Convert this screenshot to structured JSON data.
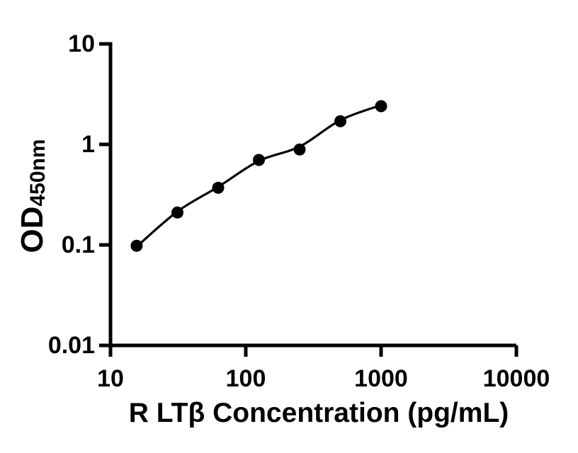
{
  "figure": {
    "background_color": "#ffffff",
    "ink_color": "#000000"
  },
  "chart_data": {
    "type": "scatter",
    "title": "",
    "xlabel": "R LTβ Concentration (pg/mL)",
    "ylabel_main": "OD",
    "ylabel_sub": "450nm",
    "x_scale": "log10",
    "y_scale": "log10",
    "xlim": [
      10,
      10000
    ],
    "ylim": [
      0.01,
      10
    ],
    "x_ticks": [
      10,
      100,
      1000,
      10000
    ],
    "x_tick_labels": [
      "10",
      "100",
      "1000",
      "10000"
    ],
    "y_ticks": [
      10,
      1,
      0.1,
      0.01
    ],
    "y_tick_labels": [
      "10",
      "1",
      "0.1",
      "0.01"
    ],
    "grid": false,
    "legend": false,
    "series": [
      {
        "name": "standard-points",
        "type": "scatter",
        "marker": "filled-circle",
        "color": "#000000",
        "x": [
          15.6,
          31.25,
          62.5,
          125,
          250,
          500,
          1000
        ],
        "y": [
          0.098,
          0.21,
          0.37,
          0.7,
          0.89,
          1.7,
          2.4
        ]
      },
      {
        "name": "fit-curve",
        "type": "line",
        "color": "#000000",
        "x": [
          15.6,
          31.25,
          62.5,
          125,
          250,
          500,
          1000
        ],
        "y": [
          0.096,
          0.215,
          0.378,
          0.685,
          0.95,
          1.74,
          2.46
        ]
      }
    ]
  }
}
